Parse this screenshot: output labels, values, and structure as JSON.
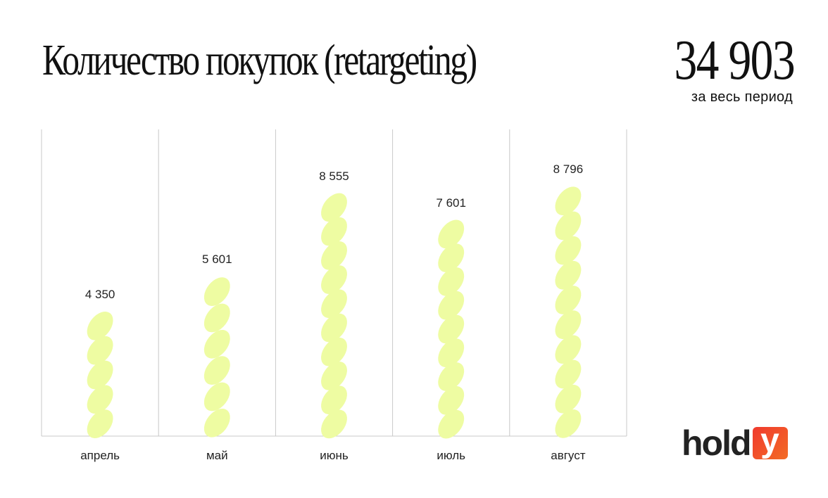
{
  "header": {
    "title": "Количество покупок (retargeting)",
    "total_value": "34 903",
    "total_caption": "за весь период"
  },
  "chart_data": {
    "type": "bar",
    "title": "Количество покупок (retargeting)",
    "categories": [
      "апрель",
      "май",
      "июнь",
      "июль",
      "август"
    ],
    "values": [
      4350,
      5601,
      8555,
      7601,
      8796
    ],
    "value_labels": [
      "4 350",
      "5 601",
      "8 555",
      "7 601",
      "8 796"
    ],
    "ylim": [
      0,
      10000
    ],
    "grid": "vertical separators",
    "bar_color": "#eefca2"
  },
  "logo": {
    "text_part": "hold",
    "box_letter": "y",
    "accent": "#f03a2e"
  }
}
